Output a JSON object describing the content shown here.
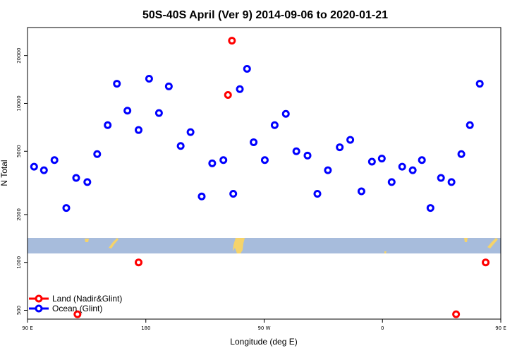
{
  "chart_data": {
    "type": "scatter",
    "title": "50S-40S April (Ver 9)   2014-09-06 to 2020-01-21",
    "xlabel": "Longitude (deg E)",
    "ylabel": "N Total",
    "y_scale": "log",
    "xlim": [
      90,
      450
    ],
    "ylim": [
      440,
      30000
    ],
    "x_ticks": [
      {
        "value": 90,
        "label": "90 E"
      },
      {
        "value": 180,
        "label": "180"
      },
      {
        "value": 270,
        "label": "90 W"
      },
      {
        "value": 360,
        "label": "0"
      },
      {
        "value": 450,
        "label": "90 E"
      },
      {
        "value": 540,
        "label": "180"
      }
    ],
    "y_ticks": [
      {
        "value": 500,
        "label": "500"
      },
      {
        "value": 1000,
        "label": "1000"
      },
      {
        "value": 2000,
        "label": "2000"
      },
      {
        "value": 5000,
        "label": "5000"
      },
      {
        "value": 10000,
        "label": "10000"
      },
      {
        "value": 20000,
        "label": "20000"
      }
    ],
    "legend_position": "bottom-left",
    "series": [
      {
        "name": "Land (Nadir&Glint)",
        "color": "#ff0000",
        "points": [
          [
            128,
            472
          ],
          [
            174.5,
            1000
          ],
          [
            242.5,
            11300
          ],
          [
            245.5,
            24800
          ],
          [
            416,
            472
          ],
          [
            438.5,
            1000
          ]
        ]
      },
      {
        "name": "Ocean (Glint)",
        "color": "#0000ff",
        "points": [
          [
            95,
            4000
          ],
          [
            102.5,
            3800
          ],
          [
            110.5,
            4400
          ],
          [
            119.5,
            2200
          ],
          [
            127,
            3400
          ],
          [
            135.5,
            3200
          ],
          [
            143,
            4800
          ],
          [
            151,
            7300
          ],
          [
            158,
            13300
          ],
          [
            166,
            9000
          ],
          [
            174.5,
            6800
          ],
          [
            182.5,
            14300
          ],
          [
            190,
            8700
          ],
          [
            197.5,
            12800
          ],
          [
            206.5,
            5400
          ],
          [
            214,
            6600
          ],
          [
            222.5,
            2600
          ],
          [
            230.5,
            4200
          ],
          [
            239,
            4400
          ],
          [
            246.5,
            2700
          ],
          [
            251.5,
            12300
          ],
          [
            257,
            16500
          ],
          [
            262,
            5700
          ],
          [
            270.5,
            4400
          ],
          [
            278,
            7300
          ],
          [
            286.5,
            8600
          ],
          [
            294.5,
            5000
          ],
          [
            303,
            4700
          ],
          [
            310.5,
            2700
          ],
          [
            318.5,
            3800
          ],
          [
            327.5,
            5300
          ],
          [
            335.5,
            5900
          ],
          [
            344,
            2800
          ],
          [
            352,
            4300
          ],
          [
            359.5,
            4500
          ],
          [
            367,
            3200
          ],
          [
            375,
            4000
          ],
          [
            383,
            3800
          ],
          [
            390,
            4400
          ],
          [
            396.5,
            2200
          ],
          [
            404.5,
            3400
          ],
          [
            412.5,
            3200
          ],
          [
            420,
            4800
          ],
          [
            426.5,
            7300
          ],
          [
            434,
            13300
          ]
        ]
      }
    ]
  }
}
